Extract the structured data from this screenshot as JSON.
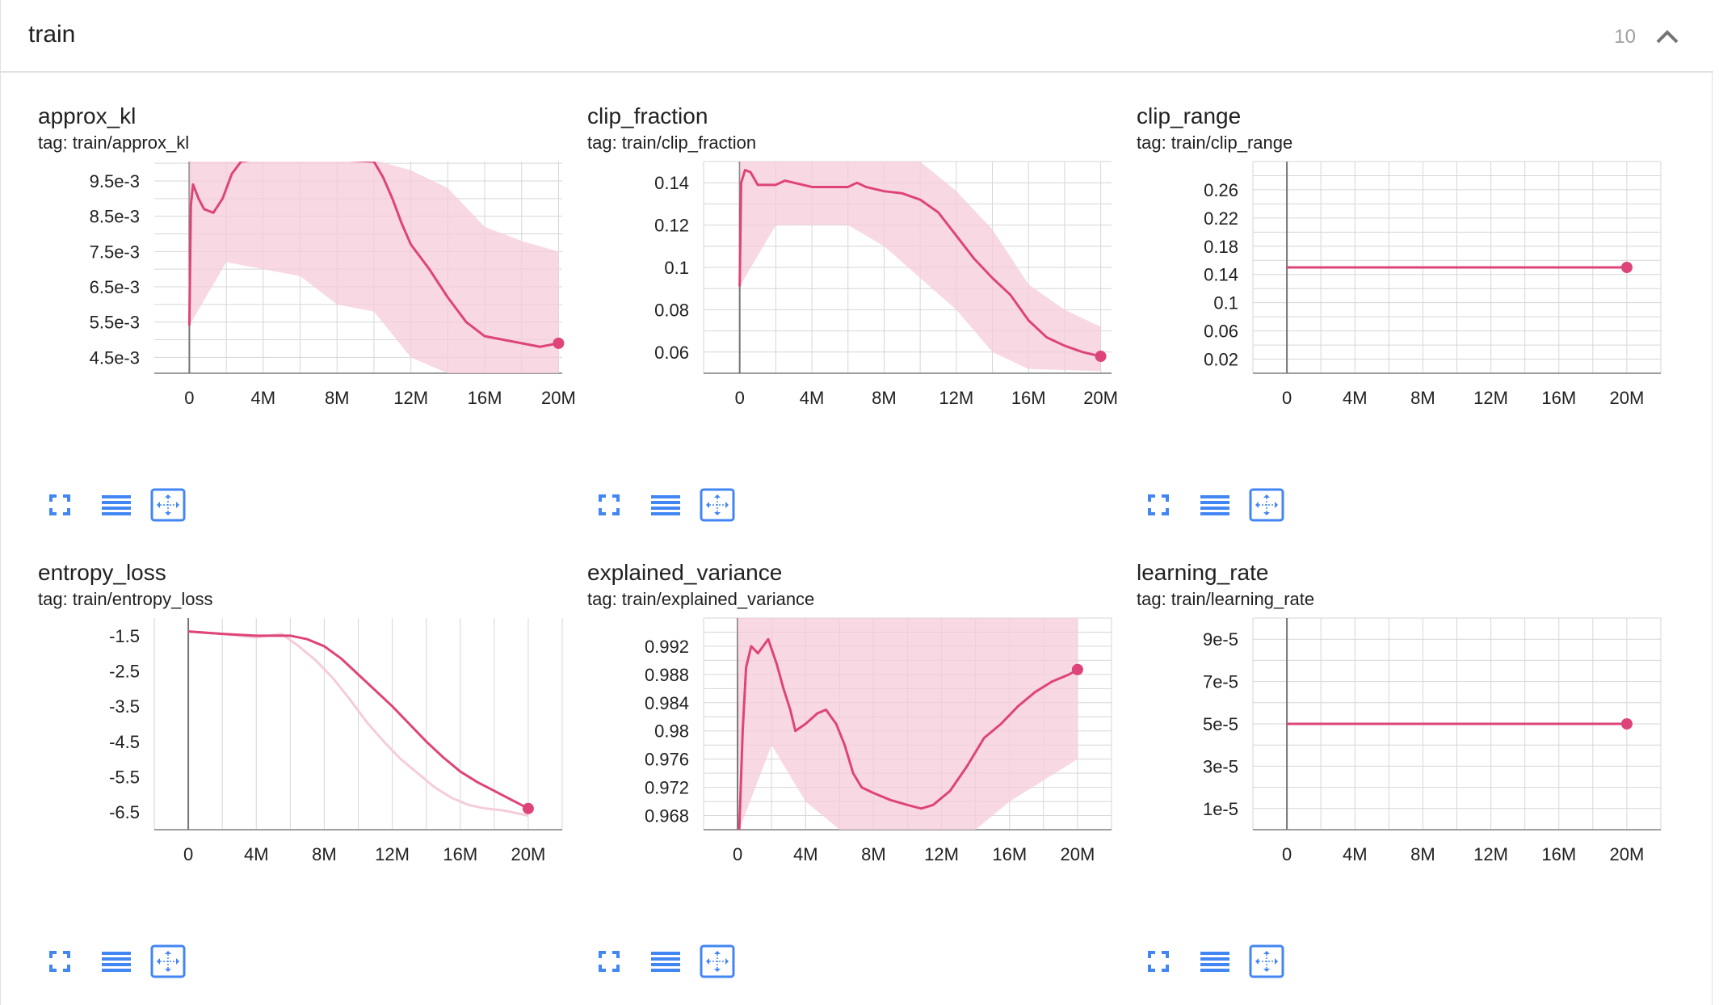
{
  "group": {
    "title": "train",
    "count": "10"
  },
  "colors": {
    "accent": "#de4479",
    "raw": "#f5ccd9",
    "grid": "#d6d6d6",
    "axis": "#9e9e9e",
    "icon": "#4286f4"
  },
  "icons": [
    "fullscreen-icon",
    "toggle-log-icon",
    "fit-domain-icon",
    "chevron-up-icon"
  ],
  "cards": [
    {
      "title": "approx_kl",
      "tag": "tag: train/approx_kl"
    },
    {
      "title": "clip_fraction",
      "tag": "tag: train/clip_fraction"
    },
    {
      "title": "clip_range",
      "tag": "tag: train/clip_range"
    },
    {
      "title": "entropy_loss",
      "tag": "tag: train/entropy_loss"
    },
    {
      "title": "explained_variance",
      "tag": "tag: train/explained_variance"
    },
    {
      "title": "learning_rate",
      "tag": "tag: train/learning_rate"
    }
  ],
  "chart_data": [
    {
      "type": "line",
      "title": "approx_kl",
      "x_ticks": [
        "0",
        "4M",
        "8M",
        "12M",
        "16M",
        "20M"
      ],
      "y_ticks": [
        "4.5e-3",
        "5.5e-3",
        "6.5e-3",
        "7.5e-3",
        "8.5e-3",
        "9.5e-3"
      ],
      "x_range": [
        -1900000,
        20200000
      ],
      "ylim": [
        0.00405,
        0.01005
      ],
      "smoothed": [
        [
          0,
          0.0054
        ],
        [
          80000,
          0.0088
        ],
        [
          200000,
          0.0094
        ],
        [
          500000,
          0.009
        ],
        [
          800000,
          0.0087
        ],
        [
          1300000,
          0.0086
        ],
        [
          1800000,
          0.009
        ],
        [
          2300000,
          0.0097
        ],
        [
          2800000,
          0.01005
        ],
        [
          3500000,
          0.0101
        ],
        [
          6000000,
          0.0101
        ],
        [
          8000000,
          0.0101
        ],
        [
          10000000,
          0.01005
        ],
        [
          10500000,
          0.0096
        ],
        [
          11000000,
          0.009
        ],
        [
          11500000,
          0.0083
        ],
        [
          12000000,
          0.0077
        ],
        [
          13000000,
          0.007
        ],
        [
          14000000,
          0.0062
        ],
        [
          15000000,
          0.0055
        ],
        [
          16000000,
          0.0051
        ],
        [
          17000000,
          0.005
        ],
        [
          18000000,
          0.0049
        ],
        [
          19000000,
          0.0048
        ],
        [
          20000000,
          0.0049
        ]
      ],
      "raw_band": {
        "upper": [
          [
            0,
            0.0101
          ],
          [
            10000000,
            0.0101
          ],
          [
            12000000,
            0.0098
          ],
          [
            14000000,
            0.0093
          ],
          [
            16000000,
            0.0082
          ],
          [
            18000000,
            0.0078
          ],
          [
            20000000,
            0.0075
          ]
        ],
        "lower": [
          [
            0,
            0.0054
          ],
          [
            2000000,
            0.0072
          ],
          [
            6000000,
            0.0068
          ],
          [
            8000000,
            0.006
          ],
          [
            10000000,
            0.0058
          ],
          [
            12000000,
            0.0045
          ],
          [
            14000000,
            0.00405
          ],
          [
            20000000,
            0.00405
          ]
        ]
      },
      "last_point": [
        20000000,
        0.0049
      ]
    },
    {
      "type": "line",
      "title": "clip_fraction",
      "x_ticks": [
        "0",
        "4M",
        "8M",
        "12M",
        "16M",
        "20M"
      ],
      "y_ticks": [
        "0.06",
        "0.08",
        "0.1",
        "0.12",
        "0.14"
      ],
      "x_range": [
        -2000000,
        20600000
      ],
      "ylim": [
        0.05,
        0.15
      ],
      "smoothed": [
        [
          0,
          0.091
        ],
        [
          80000,
          0.14
        ],
        [
          300000,
          0.146
        ],
        [
          600000,
          0.145
        ],
        [
          1000000,
          0.139
        ],
        [
          2000000,
          0.139
        ],
        [
          2500000,
          0.141
        ],
        [
          3000000,
          0.14
        ],
        [
          4000000,
          0.138
        ],
        [
          5000000,
          0.138
        ],
        [
          6000000,
          0.138
        ],
        [
          6500000,
          0.14
        ],
        [
          7000000,
          0.138
        ],
        [
          8000000,
          0.136
        ],
        [
          9000000,
          0.135
        ],
        [
          10000000,
          0.132
        ],
        [
          11000000,
          0.126
        ],
        [
          12000000,
          0.115
        ],
        [
          13000000,
          0.104
        ],
        [
          14000000,
          0.095
        ],
        [
          15000000,
          0.087
        ],
        [
          16000000,
          0.075
        ],
        [
          17000000,
          0.067
        ],
        [
          18000000,
          0.063
        ],
        [
          19000000,
          0.06
        ],
        [
          20000000,
          0.058
        ]
      ],
      "raw_band": {
        "upper": [
          [
            0,
            0.15
          ],
          [
            10000000,
            0.15
          ],
          [
            12000000,
            0.136
          ],
          [
            14000000,
            0.118
          ],
          [
            16000000,
            0.092
          ],
          [
            18000000,
            0.08
          ],
          [
            20000000,
            0.072
          ]
        ],
        "lower": [
          [
            0,
            0.091
          ],
          [
            2000000,
            0.12
          ],
          [
            6000000,
            0.12
          ],
          [
            8000000,
            0.11
          ],
          [
            10000000,
            0.095
          ],
          [
            12000000,
            0.08
          ],
          [
            14000000,
            0.06
          ],
          [
            16000000,
            0.052
          ],
          [
            20000000,
            0.051
          ]
        ]
      },
      "last_point": [
        20000000,
        0.058
      ]
    },
    {
      "type": "line",
      "title": "clip_range",
      "x_ticks": [
        "0",
        "4M",
        "8M",
        "12M",
        "16M",
        "20M"
      ],
      "y_ticks": [
        "0.02",
        "0.06",
        "0.1",
        "0.14",
        "0.18",
        "0.22",
        "0.26"
      ],
      "x_range": [
        -2000000,
        22000000
      ],
      "ylim": [
        0.0,
        0.3
      ],
      "smoothed": [
        [
          0,
          0.15
        ],
        [
          20000000,
          0.15
        ]
      ],
      "last_point": [
        20000000,
        0.15
      ]
    },
    {
      "type": "line",
      "title": "entropy_loss",
      "x_ticks": [
        "0",
        "4M",
        "8M",
        "12M",
        "16M",
        "20M"
      ],
      "y_ticks": [
        "-1.5",
        "-2.5",
        "-3.5",
        "-4.5",
        "-5.5",
        "-6.5"
      ],
      "x_range": [
        -2000000,
        22000000
      ],
      "ylim": [
        -7.0,
        -1.0
      ],
      "smoothed": [
        [
          0,
          -1.38
        ],
        [
          2000000,
          -1.45
        ],
        [
          4000000,
          -1.5
        ],
        [
          6000000,
          -1.5
        ],
        [
          7000000,
          -1.6
        ],
        [
          8000000,
          -1.8
        ],
        [
          9000000,
          -2.15
        ],
        [
          10000000,
          -2.6
        ],
        [
          11000000,
          -3.05
        ],
        [
          12000000,
          -3.5
        ],
        [
          13000000,
          -4.0
        ],
        [
          14000000,
          -4.5
        ],
        [
          15000000,
          -4.95
        ],
        [
          16000000,
          -5.35
        ],
        [
          17000000,
          -5.65
        ],
        [
          18000000,
          -5.9
        ],
        [
          19000000,
          -6.15
        ],
        [
          20000000,
          -6.4
        ]
      ],
      "raw": [
        [
          0,
          -1.38
        ],
        [
          2000000,
          -1.45
        ],
        [
          4000000,
          -1.55
        ],
        [
          5500000,
          -1.45
        ],
        [
          6500000,
          -1.8
        ],
        [
          7500000,
          -2.2
        ],
        [
          8500000,
          -2.7
        ],
        [
          9500000,
          -3.3
        ],
        [
          10500000,
          -3.95
        ],
        [
          11500000,
          -4.5
        ],
        [
          12500000,
          -5.0
        ],
        [
          13500000,
          -5.4
        ],
        [
          14500000,
          -5.8
        ],
        [
          15500000,
          -6.1
        ],
        [
          16500000,
          -6.3
        ],
        [
          17500000,
          -6.4
        ],
        [
          18500000,
          -6.45
        ],
        [
          19500000,
          -6.55
        ],
        [
          20000000,
          -6.6
        ]
      ],
      "last_point": [
        20000000,
        -6.4
      ]
    },
    {
      "type": "line",
      "title": "explained_variance",
      "x_ticks": [
        "0",
        "4M",
        "8M",
        "12M",
        "16M",
        "20M"
      ],
      "y_ticks": [
        "0.968",
        "0.972",
        "0.976",
        "0.98",
        "0.984",
        "0.988",
        "0.992"
      ],
      "x_range": [
        -2000000,
        22000000
      ],
      "ylim": [
        0.966,
        0.996
      ],
      "smoothed": [
        [
          100000,
          0.966
        ],
        [
          300000,
          0.98
        ],
        [
          500000,
          0.989
        ],
        [
          800000,
          0.992
        ],
        [
          1200000,
          0.991
        ],
        [
          1800000,
          0.993
        ],
        [
          2300000,
          0.9895
        ],
        [
          2700000,
          0.986
        ],
        [
          3100000,
          0.983
        ],
        [
          3400000,
          0.98
        ],
        [
          4000000,
          0.981
        ],
        [
          4700000,
          0.9825
        ],
        [
          5200000,
          0.983
        ],
        [
          5800000,
          0.981
        ],
        [
          6300000,
          0.978
        ],
        [
          6800000,
          0.974
        ],
        [
          7300000,
          0.972
        ],
        [
          8000000,
          0.9712
        ],
        [
          9000000,
          0.9702
        ],
        [
          10000000,
          0.9695
        ],
        [
          10800000,
          0.969
        ],
        [
          11500000,
          0.9695
        ],
        [
          12500000,
          0.9715
        ],
        [
          13500000,
          0.975
        ],
        [
          14500000,
          0.979
        ],
        [
          15500000,
          0.981
        ],
        [
          16500000,
          0.9835
        ],
        [
          17500000,
          0.9855
        ],
        [
          18500000,
          0.987
        ],
        [
          19500000,
          0.988
        ],
        [
          20000000,
          0.9887
        ]
      ],
      "raw_band": {
        "upper": [
          [
            0,
            0.996
          ],
          [
            20000000,
            0.996
          ]
        ],
        "lower": [
          [
            100000,
            0.966
          ],
          [
            2000000,
            0.978
          ],
          [
            4000000,
            0.97
          ],
          [
            6000000,
            0.966
          ],
          [
            14000000,
            0.966
          ],
          [
            16000000,
            0.97
          ],
          [
            20000000,
            0.976
          ]
        ]
      },
      "last_point": [
        20000000,
        0.9887
      ]
    },
    {
      "type": "line",
      "title": "learning_rate",
      "x_ticks": [
        "0",
        "4M",
        "8M",
        "12M",
        "16M",
        "20M"
      ],
      "y_ticks": [
        "1e-5",
        "3e-5",
        "5e-5",
        "7e-5",
        "9e-5"
      ],
      "x_range": [
        -2000000,
        22000000
      ],
      "ylim": [
        0.0,
        0.0001
      ],
      "smoothed": [
        [
          0,
          5e-05
        ],
        [
          20000000,
          5e-05
        ]
      ],
      "last_point": [
        20000000,
        5e-05
      ]
    }
  ]
}
